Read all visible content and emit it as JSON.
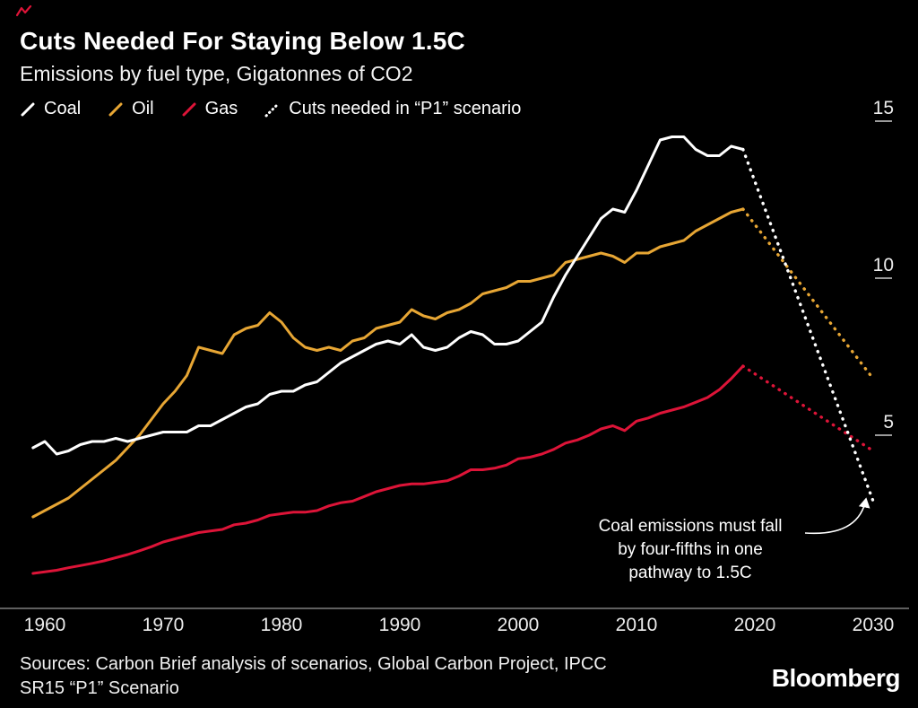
{
  "brand": {
    "mark_color": "#dd1438"
  },
  "header": {
    "title": "Cuts Needed For Staying Below 1.5C",
    "subtitle": "Emissions by fuel type, Gigatonnes of CO2"
  },
  "legend": {
    "items": [
      {
        "label": "Coal",
        "color": "#ffffff",
        "dashed": false
      },
      {
        "label": "Oil",
        "color": "#e7a634",
        "dashed": false
      },
      {
        "label": "Gas",
        "color": "#dd1438",
        "dashed": false
      },
      {
        "label": "Cuts needed in “P1” scenario",
        "color": "#ffffff",
        "dashed": true
      }
    ]
  },
  "chart_data": {
    "type": "line",
    "title": "Cuts Needed For Staying Below 1.5C",
    "subtitle": "Emissions by fuel type, Gigatonnes of CO2",
    "ylabel": "Gigatonnes of CO2",
    "xlabel": "",
    "x_ticks": [
      1960,
      1970,
      1980,
      1990,
      2000,
      2010,
      2020,
      2030
    ],
    "y_ticks": [
      5,
      10,
      15
    ],
    "xlim": [
      1959,
      2031
    ],
    "ylim": [
      0,
      15.5
    ],
    "grid": false,
    "legend_position": "top",
    "years": [
      1959,
      1960,
      1961,
      1962,
      1963,
      1964,
      1965,
      1966,
      1967,
      1968,
      1969,
      1970,
      1971,
      1972,
      1973,
      1974,
      1975,
      1976,
      1977,
      1978,
      1979,
      1980,
      1981,
      1982,
      1983,
      1984,
      1985,
      1986,
      1987,
      1988,
      1989,
      1990,
      1991,
      1992,
      1993,
      1994,
      1995,
      1996,
      1997,
      1998,
      1999,
      2000,
      2001,
      2002,
      2003,
      2004,
      2005,
      2006,
      2007,
      2008,
      2009,
      2010,
      2011,
      2012,
      2013,
      2014,
      2015,
      2016,
      2017,
      2018,
      2019
    ],
    "series": [
      {
        "name": "Oil",
        "color": "#e7a634",
        "style": "solid",
        "values": [
          2.4,
          2.6,
          2.8,
          3.0,
          3.3,
          3.6,
          3.9,
          4.2,
          4.6,
          5.0,
          5.5,
          6.0,
          6.4,
          6.9,
          7.8,
          7.7,
          7.6,
          8.2,
          8.4,
          8.5,
          8.9,
          8.6,
          8.1,
          7.8,
          7.7,
          7.8,
          7.7,
          8.0,
          8.1,
          8.4,
          8.5,
          8.6,
          9.0,
          8.8,
          8.7,
          8.9,
          9.0,
          9.2,
          9.5,
          9.6,
          9.7,
          9.9,
          9.9,
          10.0,
          10.1,
          10.5,
          10.6,
          10.7,
          10.8,
          10.7,
          10.5,
          10.8,
          10.8,
          11.0,
          11.1,
          11.2,
          11.5,
          11.7,
          11.9,
          12.1,
          12.2
        ]
      },
      {
        "name": "Gas",
        "color": "#dd1438",
        "style": "solid",
        "values": [
          0.6,
          0.65,
          0.7,
          0.78,
          0.85,
          0.92,
          1.0,
          1.1,
          1.2,
          1.32,
          1.45,
          1.6,
          1.7,
          1.8,
          1.9,
          1.95,
          2.0,
          2.15,
          2.2,
          2.3,
          2.45,
          2.5,
          2.55,
          2.55,
          2.6,
          2.75,
          2.85,
          2.9,
          3.05,
          3.2,
          3.3,
          3.4,
          3.45,
          3.45,
          3.5,
          3.55,
          3.7,
          3.9,
          3.9,
          3.95,
          4.05,
          4.25,
          4.3,
          4.4,
          4.55,
          4.75,
          4.85,
          5.0,
          5.2,
          5.3,
          5.15,
          5.45,
          5.55,
          5.7,
          5.8,
          5.9,
          6.05,
          6.2,
          6.45,
          6.8,
          7.2
        ]
      },
      {
        "name": "Coal",
        "color": "#ffffff",
        "style": "solid",
        "values": [
          4.6,
          4.8,
          4.4,
          4.5,
          4.7,
          4.8,
          4.8,
          4.9,
          4.8,
          4.9,
          5.0,
          5.1,
          5.1,
          5.1,
          5.3,
          5.3,
          5.5,
          5.7,
          5.9,
          6.0,
          6.3,
          6.4,
          6.4,
          6.6,
          6.7,
          7.0,
          7.3,
          7.5,
          7.7,
          7.9,
          8.0,
          7.9,
          8.2,
          7.8,
          7.7,
          7.8,
          8.1,
          8.3,
          8.2,
          7.9,
          7.9,
          8.0,
          8.3,
          8.6,
          9.4,
          10.1,
          10.7,
          11.3,
          11.9,
          12.2,
          12.1,
          12.8,
          13.6,
          14.4,
          14.5,
          14.5,
          14.1,
          13.9,
          13.9,
          14.2,
          14.1
        ]
      },
      {
        "name": "Oil cuts needed in P1 scenario",
        "color": "#e7a634",
        "style": "dotted",
        "x": [
          2019,
          2030
        ],
        "values": [
          12.2,
          6.8
        ]
      },
      {
        "name": "Gas cuts needed in P1 scenario",
        "color": "#dd1438",
        "style": "dotted",
        "x": [
          2019,
          2030
        ],
        "values": [
          7.2,
          4.5
        ]
      },
      {
        "name": "Coal cuts needed in P1 scenario",
        "color": "#ffffff",
        "style": "dotted",
        "x": [
          2019,
          2030
        ],
        "values": [
          14.1,
          2.9
        ]
      }
    ],
    "annotation": {
      "lines": [
        "Coal emissions must fall",
        "by four-fifths in one",
        "pathway to 1.5C"
      ]
    }
  },
  "footer": {
    "sources_line1": "Sources: Carbon Brief analysis of scenarios, Global Carbon Project, IPCC",
    "sources_line2": "SR15 “P1” Scenario",
    "logo": "Bloomberg"
  }
}
